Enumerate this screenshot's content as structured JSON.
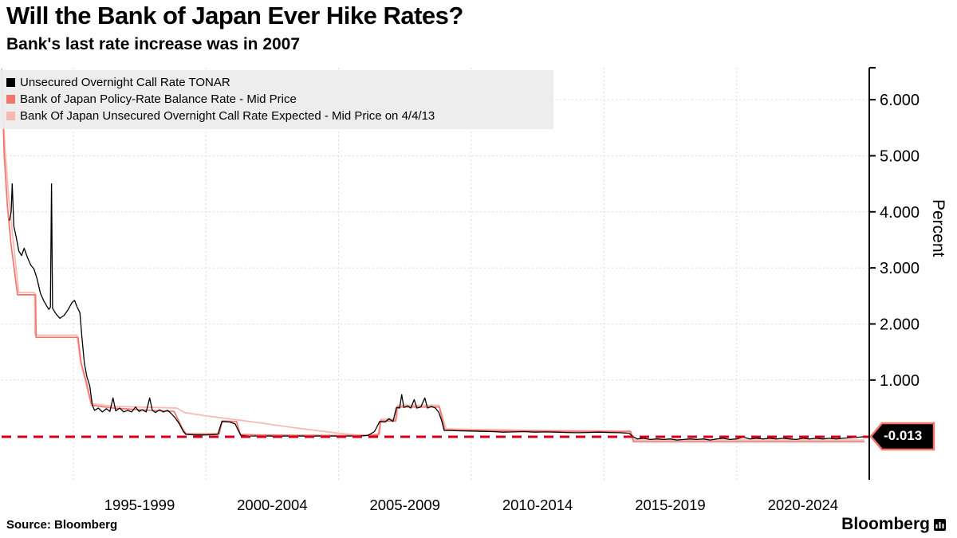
{
  "header": {
    "title": "Will the Bank of Japan Ever Hike Rates?",
    "subtitle": "Bank's last rate increase was in 2007"
  },
  "legend": {
    "items": [
      {
        "label": "Unsecured Overnight Call Rate TONAR",
        "color": "#000000"
      },
      {
        "label": "Bank of Japan Policy-Rate Balance Rate - Mid Price",
        "color": "#f4736b"
      },
      {
        "label": "Bank Of Japan Unsecured Overnight Call Rate Expected - Mid Price on 4/4/13",
        "color": "#f8b8b1"
      }
    ]
  },
  "badge": {
    "label": "-0.013",
    "bg": "#000000",
    "text_color": "#ffffff",
    "border_color": "#f4736b"
  },
  "footer": {
    "source": "Source: Bloomberg",
    "brand": "Bloomberg"
  },
  "chart_data": {
    "type": "line",
    "title": "Will the Bank of Japan Ever Hike Rates?",
    "subtitle": "Bank's last rate increase was in 2007",
    "ylabel": "Percent",
    "xlabel": "",
    "xlim": [
      1992.3,
      2025.0
    ],
    "ylim": [
      -0.78,
      6.57
    ],
    "grid": true,
    "legend_position": "top-left",
    "x_gridlines": [
      1995,
      2000,
      2005,
      2010,
      2015,
      2020
    ],
    "y_gridlines": [
      1,
      2,
      3,
      4,
      5,
      6
    ],
    "y_ticks": [
      {
        "value": 6,
        "label": "6.000"
      },
      {
        "value": 5,
        "label": "5.000"
      },
      {
        "value": 4,
        "label": "4.000"
      },
      {
        "value": 3,
        "label": "3.000"
      },
      {
        "value": 2,
        "label": "2.000"
      },
      {
        "value": 1,
        "label": "1.000"
      }
    ],
    "xlabel_groups": [
      {
        "label": "1995-1999",
        "center_year": 1997.5
      },
      {
        "label": "2000-2004",
        "center_year": 2002.5
      },
      {
        "label": "2005-2009",
        "center_year": 2007.5
      },
      {
        "label": "2010-2014",
        "center_year": 2012.5
      },
      {
        "label": "2015-2019",
        "center_year": 2017.5
      },
      {
        "label": "2020-2024",
        "center_year": 2022.5
      }
    ],
    "annotation_line": {
      "value": -0.013,
      "label": "-0.013",
      "color": "#d0021b",
      "style": "dashed"
    },
    "series": [
      {
        "name": "Bank Of Japan Unsecured Overnight Call Rate Expected - Mid Price on 4/4/13",
        "color": "#f8b8b1",
        "width": 1.7,
        "points": [
          [
            1992.3,
            6.55
          ],
          [
            1992.42,
            5.2
          ],
          [
            1992.56,
            4.3
          ],
          [
            1992.72,
            3.55
          ],
          [
            1992.95,
            2.56
          ],
          [
            1993.54,
            2.56
          ],
          [
            1993.56,
            1.8
          ],
          [
            1995.14,
            1.8
          ],
          [
            1995.26,
            1.35
          ],
          [
            1995.46,
            0.98
          ],
          [
            1995.66,
            0.58
          ],
          [
            1996.6,
            0.53
          ],
          [
            1998.9,
            0.5
          ],
          [
            1999.2,
            0.42
          ],
          [
            2000.0,
            0.36
          ],
          [
            2001.0,
            0.3
          ],
          [
            2002.0,
            0.24
          ],
          [
            2003.0,
            0.17
          ],
          [
            2004.0,
            0.11
          ],
          [
            2005.0,
            0.05
          ],
          [
            2005.7,
            0.02
          ],
          [
            2006.0,
            0.02
          ],
          [
            2006.55,
            0.04
          ],
          [
            2006.6,
            0.3
          ],
          [
            2007.18,
            0.3
          ],
          [
            2007.24,
            0.55
          ],
          [
            2008.78,
            0.55
          ],
          [
            2008.92,
            0.34
          ],
          [
            2009.05,
            0.13
          ],
          [
            2010.0,
            0.12
          ],
          [
            2013.0,
            0.1
          ],
          [
            2016.0,
            0.09
          ],
          [
            2016.15,
            -0.07
          ],
          [
            2024.8,
            -0.07
          ]
        ]
      },
      {
        "name": "Bank of Japan Policy-Rate Balance Rate - Mid Price",
        "color": "#f4736b",
        "width": 1.7,
        "points": [
          [
            1992.3,
            6.5
          ],
          [
            1992.4,
            5.0
          ],
          [
            1992.52,
            4.1
          ],
          [
            1992.66,
            3.4
          ],
          [
            1992.9,
            2.52
          ],
          [
            1993.58,
            2.52
          ],
          [
            1993.6,
            1.76
          ],
          [
            1995.18,
            1.76
          ],
          [
            1995.3,
            1.3
          ],
          [
            1995.5,
            0.95
          ],
          [
            1995.7,
            0.55
          ],
          [
            1996.5,
            0.5
          ],
          [
            1997.5,
            0.47
          ],
          [
            1998.8,
            0.44
          ],
          [
            1999.1,
            0.15
          ],
          [
            1999.25,
            0.04
          ],
          [
            2000.5,
            0.04
          ],
          [
            2000.62,
            0.27
          ],
          [
            2001.15,
            0.26
          ],
          [
            2001.3,
            0.03
          ],
          [
            2002.0,
            0.02
          ],
          [
            2003.5,
            0.015
          ],
          [
            2005.0,
            0.01
          ],
          [
            2006.0,
            0.01
          ],
          [
            2006.5,
            0.02
          ],
          [
            2006.58,
            0.27
          ],
          [
            2007.15,
            0.27
          ],
          [
            2007.2,
            0.52
          ],
          [
            2008.8,
            0.52
          ],
          [
            2008.9,
            0.32
          ],
          [
            2009.0,
            0.11
          ],
          [
            2010.0,
            0.1
          ],
          [
            2012.0,
            0.09
          ],
          [
            2014.0,
            0.085
          ],
          [
            2016.0,
            0.08
          ],
          [
            2016.12,
            -0.1
          ],
          [
            2024.8,
            -0.1
          ]
        ]
      },
      {
        "name": "Unsecured Overnight Call Rate TONAR",
        "color": "#000000",
        "width": 1.3,
        "points": [
          [
            1992.6,
            3.85
          ],
          [
            1992.66,
            4.0
          ],
          [
            1992.7,
            4.5
          ],
          [
            1992.76,
            3.75
          ],
          [
            1992.85,
            3.55
          ],
          [
            1992.95,
            3.3
          ],
          [
            1993.05,
            3.22
          ],
          [
            1993.15,
            3.35
          ],
          [
            1993.28,
            3.18
          ],
          [
            1993.4,
            3.05
          ],
          [
            1993.52,
            2.98
          ],
          [
            1993.64,
            2.8
          ],
          [
            1993.76,
            2.55
          ],
          [
            1993.88,
            2.42
          ],
          [
            1994.0,
            2.32
          ],
          [
            1994.08,
            2.26
          ],
          [
            1994.14,
            2.3
          ],
          [
            1994.18,
            4.5
          ],
          [
            1994.22,
            2.28
          ],
          [
            1994.35,
            2.18
          ],
          [
            1994.5,
            2.1
          ],
          [
            1994.65,
            2.15
          ],
          [
            1994.8,
            2.25
          ],
          [
            1994.95,
            2.38
          ],
          [
            1995.05,
            2.42
          ],
          [
            1995.15,
            2.3
          ],
          [
            1995.25,
            2.2
          ],
          [
            1995.33,
            1.75
          ],
          [
            1995.42,
            1.3
          ],
          [
            1995.52,
            1.05
          ],
          [
            1995.62,
            0.9
          ],
          [
            1995.72,
            0.55
          ],
          [
            1995.8,
            0.46
          ],
          [
            1995.95,
            0.5
          ],
          [
            1996.1,
            0.43
          ],
          [
            1996.25,
            0.49
          ],
          [
            1996.38,
            0.44
          ],
          [
            1996.5,
            0.68
          ],
          [
            1996.6,
            0.45
          ],
          [
            1996.75,
            0.5
          ],
          [
            1996.9,
            0.43
          ],
          [
            1997.05,
            0.46
          ],
          [
            1997.2,
            0.43
          ],
          [
            1997.35,
            0.52
          ],
          [
            1997.48,
            0.44
          ],
          [
            1997.6,
            0.47
          ],
          [
            1997.75,
            0.43
          ],
          [
            1997.88,
            0.68
          ],
          [
            1997.98,
            0.46
          ],
          [
            1998.1,
            0.42
          ],
          [
            1998.25,
            0.47
          ],
          [
            1998.4,
            0.43
          ],
          [
            1998.55,
            0.46
          ],
          [
            1998.7,
            0.4
          ],
          [
            1998.85,
            0.32
          ],
          [
            1999.0,
            0.22
          ],
          [
            1999.15,
            0.08
          ],
          [
            1999.25,
            0.03
          ],
          [
            1999.6,
            0.02
          ],
          [
            2000.0,
            0.02
          ],
          [
            2000.45,
            0.03
          ],
          [
            2000.6,
            0.26
          ],
          [
            2000.9,
            0.25
          ],
          [
            2001.1,
            0.22
          ],
          [
            2001.22,
            0.1
          ],
          [
            2001.32,
            0.01
          ],
          [
            2001.6,
            0.002
          ],
          [
            2002.2,
            0.001
          ],
          [
            2003.0,
            0.001
          ],
          [
            2004.0,
            0.001
          ],
          [
            2005.0,
            0.001
          ],
          [
            2005.8,
            0.002
          ],
          [
            2006.1,
            0.01
          ],
          [
            2006.35,
            0.08
          ],
          [
            2006.55,
            0.26
          ],
          [
            2006.75,
            0.25
          ],
          [
            2006.9,
            0.31
          ],
          [
            2007.05,
            0.26
          ],
          [
            2007.18,
            0.51
          ],
          [
            2007.3,
            0.5
          ],
          [
            2007.38,
            0.74
          ],
          [
            2007.46,
            0.51
          ],
          [
            2007.6,
            0.54
          ],
          [
            2007.72,
            0.5
          ],
          [
            2007.85,
            0.65
          ],
          [
            2007.95,
            0.5
          ],
          [
            2008.1,
            0.52
          ],
          [
            2008.25,
            0.68
          ],
          [
            2008.35,
            0.5
          ],
          [
            2008.5,
            0.53
          ],
          [
            2008.65,
            0.5
          ],
          [
            2008.78,
            0.42
          ],
          [
            2008.88,
            0.28
          ],
          [
            2008.98,
            0.1
          ],
          [
            2009.2,
            0.1
          ],
          [
            2009.5,
            0.095
          ],
          [
            2010.0,
            0.09
          ],
          [
            2010.4,
            0.085
          ],
          [
            2010.8,
            0.08
          ],
          [
            2011.2,
            0.07
          ],
          [
            2011.6,
            0.075
          ],
          [
            2012.0,
            0.08
          ],
          [
            2012.4,
            0.07
          ],
          [
            2012.8,
            0.075
          ],
          [
            2013.2,
            0.07
          ],
          [
            2013.6,
            0.065
          ],
          [
            2014.0,
            0.06
          ],
          [
            2014.4,
            0.065
          ],
          [
            2014.8,
            0.07
          ],
          [
            2015.2,
            0.065
          ],
          [
            2015.6,
            0.06
          ],
          [
            2015.95,
            0.05
          ],
          [
            2016.1,
            -0.01
          ],
          [
            2016.25,
            -0.05
          ],
          [
            2016.5,
            -0.04
          ],
          [
            2016.75,
            -0.06
          ],
          [
            2017.0,
            -0.05
          ],
          [
            2017.25,
            -0.06
          ],
          [
            2017.5,
            -0.05
          ],
          [
            2017.75,
            -0.07
          ],
          [
            2018.0,
            -0.06
          ],
          [
            2018.25,
            -0.05
          ],
          [
            2018.5,
            -0.06
          ],
          [
            2018.75,
            -0.05
          ],
          [
            2019.0,
            -0.07
          ],
          [
            2019.25,
            -0.05
          ],
          [
            2019.5,
            -0.04
          ],
          [
            2019.75,
            -0.06
          ],
          [
            2020.0,
            -0.05
          ],
          [
            2020.25,
            -0.02
          ],
          [
            2020.5,
            -0.05
          ],
          [
            2020.75,
            -0.04
          ],
          [
            2021.0,
            -0.05
          ],
          [
            2021.25,
            -0.04
          ],
          [
            2021.5,
            -0.05
          ],
          [
            2021.75,
            -0.04
          ],
          [
            2022.0,
            -0.05
          ],
          [
            2022.25,
            -0.06
          ],
          [
            2022.5,
            -0.04
          ],
          [
            2022.75,
            -0.05
          ],
          [
            2023.0,
            -0.04
          ],
          [
            2023.25,
            -0.05
          ],
          [
            2023.5,
            -0.04
          ],
          [
            2023.75,
            -0.05
          ],
          [
            2024.0,
            -0.04
          ],
          [
            2024.3,
            -0.03
          ],
          [
            2024.6,
            -0.02
          ],
          [
            2024.8,
            -0.013
          ]
        ]
      }
    ]
  }
}
